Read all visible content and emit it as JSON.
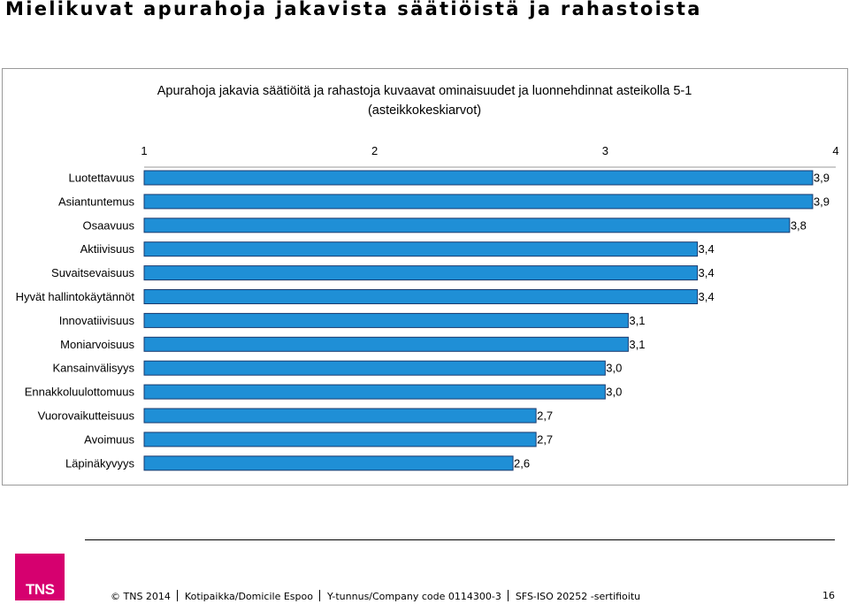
{
  "page": {
    "title": "Mielikuvat apurahoja jakavista säätiöistä ja rahastoista",
    "footer": {
      "copyright": "© TNS 2014",
      "address": "Kotipaikka/Domicile Espoo",
      "company_code": "Y-tunnus/Company code 0114300-3",
      "certification": "SFS-ISO 20252 -sertifioitu",
      "page_number": "16"
    },
    "logo_text": "TNS"
  },
  "colors": {
    "bar_fill": "#1f8fd6",
    "bar_stroke": "#1a3a6e",
    "logo": "#d6006f"
  },
  "chart_data": {
    "type": "bar",
    "orientation": "horizontal",
    "title_lines": [
      "Apurahoja jakavia säätiöitä ja rahastoja kuvaavat ominaisuudet ja luonnehdinnat asteikolla 5-1",
      "(asteikkokeskiarvot)"
    ],
    "xlim": [
      1,
      4
    ],
    "x_ticks": [
      "1",
      "2",
      "3",
      "4"
    ],
    "x_tick_values": [
      1,
      2,
      3,
      4
    ],
    "x_axis_position": "top",
    "grid": false,
    "categories": [
      "Luotettavuus",
      "Asiantuntemus",
      "Osaavuus",
      "Aktiivisuus",
      "Suvaitsevaisuus",
      "Hyvät hallintokäytännöt",
      "Innovatiivisuus",
      "Moniarvoisuus",
      "Kansainvälisyys",
      "Ennakkoluulottomuus",
      "Vuorovaikutteisuus",
      "Avoimuus",
      "Läpinäkyvyys"
    ],
    "values": [
      3.9,
      3.9,
      3.8,
      3.4,
      3.4,
      3.4,
      3.1,
      3.1,
      3.0,
      3.0,
      2.7,
      2.7,
      2.6
    ],
    "value_labels": [
      "3,9",
      "3,9",
      "3,8",
      "3,4",
      "3,4",
      "3,4",
      "3,1",
      "3,1",
      "3,0",
      "3,0",
      "2,7",
      "2,7",
      "2,6"
    ]
  }
}
